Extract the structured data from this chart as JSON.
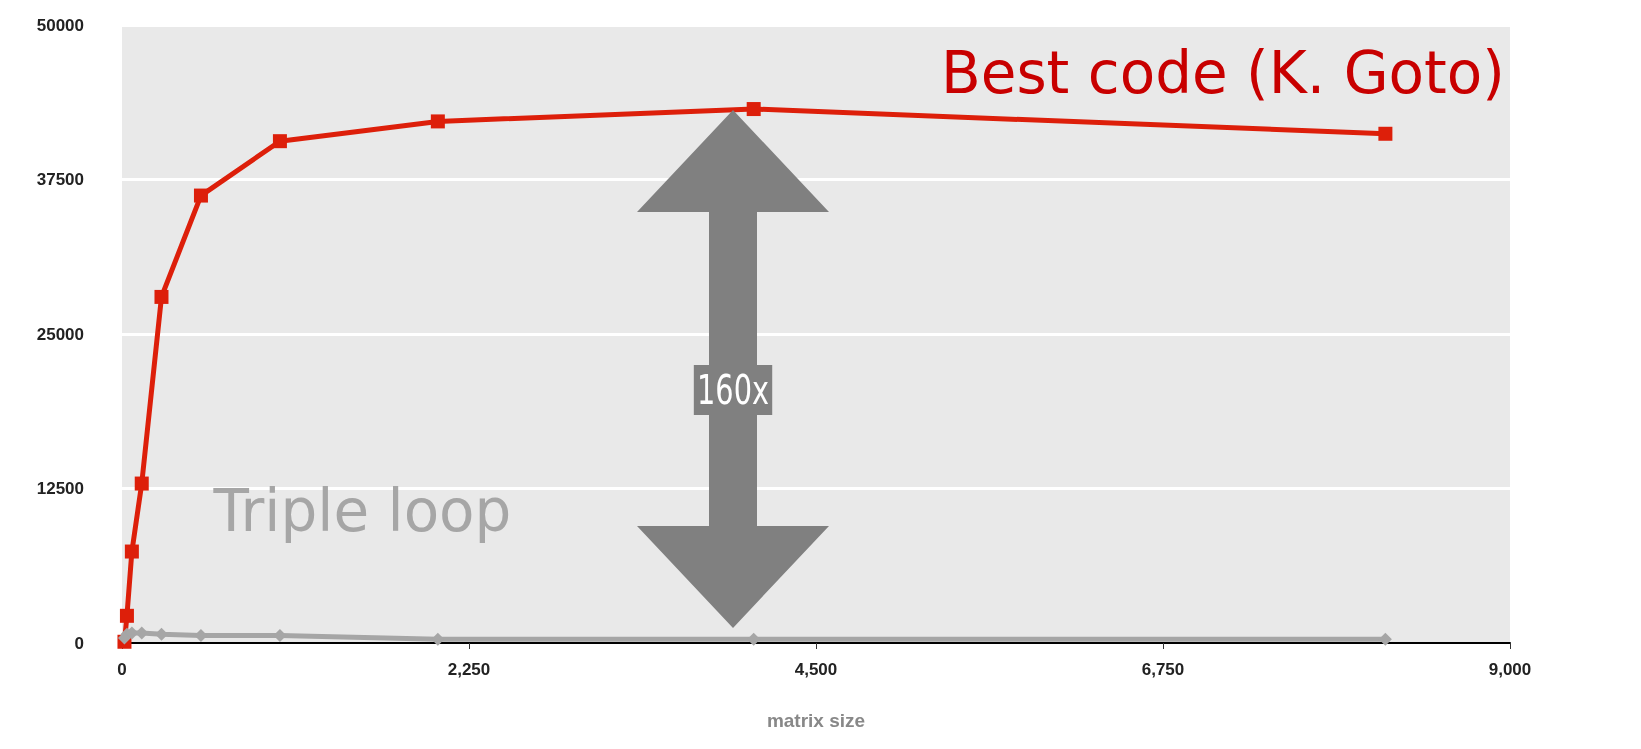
{
  "chart_data": {
    "type": "line",
    "xlabel": "matrix size",
    "xlim": [
      0,
      9000
    ],
    "xticks": [
      0,
      {
        "value": 2250,
        "label": "2,250"
      },
      {
        "value": 4500,
        "label": "4,500"
      },
      {
        "value": 6750,
        "label": "6,750"
      },
      {
        "value": 9000,
        "label": "9,000"
      }
    ],
    "ylim": [
      0,
      50000
    ],
    "yticks": [
      0,
      12500,
      25000,
      37500,
      50000
    ],
    "grid": "y",
    "legend": false,
    "x": [
      16,
      32,
      64,
      128,
      256,
      512,
      1024,
      2048,
      4096,
      8192
    ],
    "series": [
      {
        "name": "Best code (K. Goto)",
        "color": "#dd1f0a",
        "marker": "square",
        "values": [
          100,
          2200,
          7400,
          12900,
          28000,
          36200,
          40600,
          42200,
          43200,
          41200
        ]
      },
      {
        "name": "Triple loop",
        "color": "#a6a6a6",
        "marker": "diamond",
        "values": [
          400,
          700,
          800,
          800,
          700,
          600,
          600,
          300,
          300,
          300
        ]
      }
    ],
    "annotations": [
      "160x"
    ]
  }
}
